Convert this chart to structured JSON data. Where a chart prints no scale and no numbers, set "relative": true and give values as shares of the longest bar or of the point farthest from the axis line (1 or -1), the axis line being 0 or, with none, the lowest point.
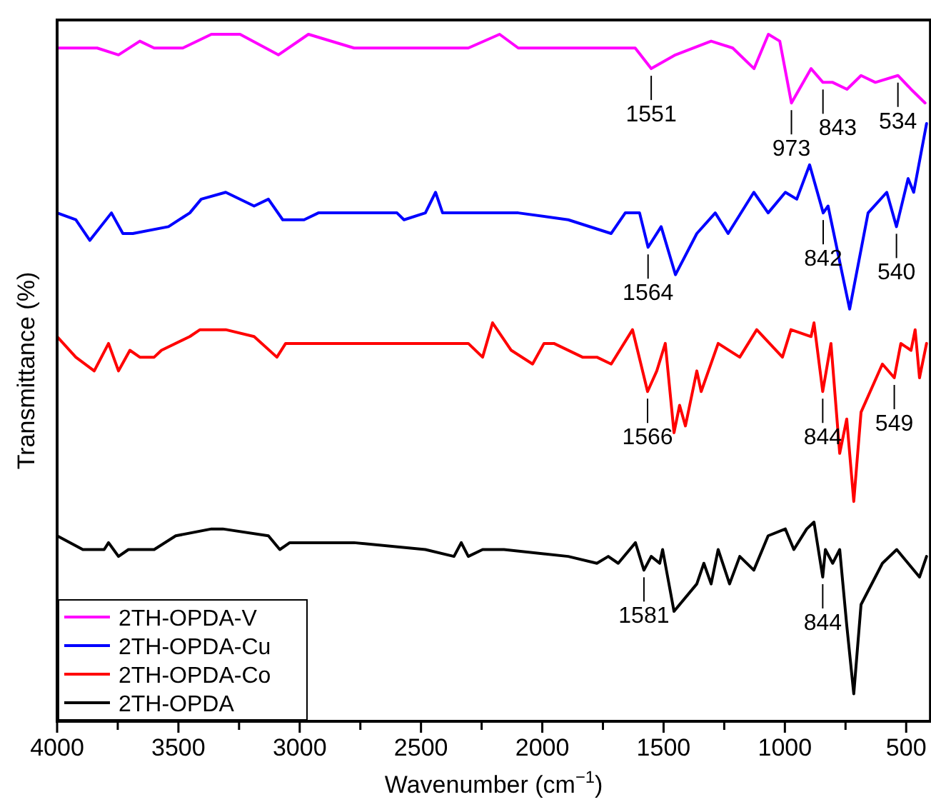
{
  "chart_data": {
    "type": "line",
    "relative": true,
    "xlabel": "Wavenumber (cm$^{−1}$)",
    "ylabel": "Transmittance (%)",
    "xlim": [
      4000,
      400
    ],
    "xticks": [
      4000,
      {
        "value": 3750,
        "label": null
      },
      3500,
      {
        "value": 3250,
        "label": null
      },
      3000,
      {
        "value": 2750,
        "label": null
      },
      2500,
      {
        "value": 2250,
        "label": null
      },
      2000,
      {
        "value": 1750,
        "label": null
      },
      1500,
      {
        "value": 1250,
        "label": null
      },
      1000,
      {
        "value": 750,
        "label": null
      },
      500
    ],
    "legend": "bottom left",
    "tick_labels": "x",
    "grid": false,
    "line_style": "solid",
    "marker": "none",
    "series": [
      {
        "name": "2TH-OPDA-V",
        "color": "#ff00ff",
        "x": [
          4000,
          3835,
          3747,
          3659,
          3600,
          3482,
          3364,
          3246,
          3088,
          2964,
          2776,
          2629,
          2482,
          2305,
          2176,
          2099,
          1893,
          1617,
          1551,
          1451,
          1304,
          1215,
          1127,
          1068,
          1021,
          973,
          892,
          843,
          803,
          744,
          686,
          627,
          534,
          480,
          422
        ],
        "values": [
          0.98,
          0.98,
          0.97,
          0.99,
          0.98,
          0.98,
          1.0,
          1.0,
          0.97,
          1.0,
          0.98,
          0.98,
          0.98,
          0.98,
          1.0,
          0.98,
          0.98,
          0.98,
          0.95,
          0.97,
          0.99,
          0.98,
          0.95,
          1.0,
          0.99,
          0.9,
          0.95,
          0.93,
          0.93,
          0.92,
          0.94,
          0.93,
          0.94,
          0.92,
          0.9
        ]
      },
      {
        "name": "2TH-OPDA-Cu",
        "color": "#0000ff",
        "x": [
          4000,
          3923,
          3865,
          3776,
          3729,
          3688,
          3541,
          3453,
          3406,
          3305,
          3188,
          3129,
          3070,
          2982,
          2923,
          2776,
          2599,
          2570,
          2482,
          2440,
          2411,
          2217,
          2099,
          1893,
          1716,
          1658,
          1599,
          1564,
          1510,
          1451,
          1363,
          1287,
          1234,
          1128,
          1069,
          998,
          951,
          898,
          842,
          822,
          733,
          657,
          580,
          540,
          492,
          469,
          416
        ],
        "values": [
          0.74,
          0.73,
          0.7,
          0.74,
          0.71,
          0.71,
          0.72,
          0.74,
          0.76,
          0.77,
          0.75,
          0.76,
          0.73,
          0.73,
          0.74,
          0.74,
          0.74,
          0.73,
          0.74,
          0.77,
          0.74,
          0.74,
          0.74,
          0.73,
          0.71,
          0.74,
          0.74,
          0.69,
          0.72,
          0.65,
          0.71,
          0.74,
          0.71,
          0.77,
          0.74,
          0.77,
          0.76,
          0.81,
          0.74,
          0.75,
          0.6,
          0.74,
          0.77,
          0.72,
          0.79,
          0.77,
          0.87
        ]
      },
      {
        "name": "2TH-OPDA-Co",
        "color": "#ff0000",
        "x": [
          4000,
          3923,
          3847,
          3788,
          3747,
          3700,
          3659,
          3600,
          3570,
          3453,
          3411,
          3305,
          3188,
          3094,
          3058,
          2893,
          2717,
          2599,
          2482,
          2305,
          2246,
          2205,
          2128,
          2040,
          1993,
          1952,
          1834,
          1775,
          1716,
          1628,
          1566,
          1528,
          1493,
          1457,
          1434,
          1410,
          1363,
          1345,
          1275,
          1186,
          1116,
          1010,
          975,
          892,
          880,
          844,
          810,
          774,
          745,
          716,
          686,
          598,
          549,
          522,
          480,
          463,
          445,
          416
        ],
        "values": [
          0.56,
          0.53,
          0.51,
          0.55,
          0.51,
          0.54,
          0.53,
          0.53,
          0.54,
          0.56,
          0.57,
          0.57,
          0.56,
          0.53,
          0.55,
          0.55,
          0.55,
          0.55,
          0.55,
          0.55,
          0.53,
          0.58,
          0.54,
          0.52,
          0.55,
          0.55,
          0.53,
          0.53,
          0.52,
          0.57,
          0.48,
          0.51,
          0.55,
          0.42,
          0.46,
          0.43,
          0.51,
          0.48,
          0.55,
          0.53,
          0.57,
          0.53,
          0.57,
          0.56,
          0.58,
          0.48,
          0.55,
          0.39,
          0.44,
          0.32,
          0.45,
          0.52,
          0.5,
          0.55,
          0.54,
          0.57,
          0.5,
          0.55
        ]
      },
      {
        "name": "2TH-OPDA",
        "color": "#000000",
        "x": [
          4000,
          3894,
          3806,
          3788,
          3747,
          3706,
          3600,
          3511,
          3364,
          3317,
          3129,
          3082,
          3041,
          2776,
          2482,
          2364,
          2334,
          2305,
          2246,
          2158,
          1893,
          1775,
          1728,
          1687,
          1616,
          1581,
          1551,
          1516,
          1504,
          1457,
          1363,
          1334,
          1304,
          1275,
          1228,
          1186,
          1128,
          1069,
          998,
          963,
          910,
          880,
          844,
          833,
          803,
          774,
          745,
          716,
          686,
          598,
          539,
          492,
          445,
          416
        ],
        "values": [
          0.27,
          0.25,
          0.25,
          0.26,
          0.24,
          0.25,
          0.25,
          0.27,
          0.28,
          0.28,
          0.27,
          0.25,
          0.26,
          0.26,
          0.25,
          0.24,
          0.26,
          0.24,
          0.25,
          0.25,
          0.24,
          0.23,
          0.24,
          0.23,
          0.26,
          0.22,
          0.24,
          0.23,
          0.25,
          0.16,
          0.2,
          0.23,
          0.2,
          0.25,
          0.2,
          0.24,
          0.22,
          0.27,
          0.28,
          0.25,
          0.28,
          0.29,
          0.21,
          0.25,
          0.23,
          0.25,
          0.14,
          0.04,
          0.17,
          0.23,
          0.25,
          0.23,
          0.21,
          0.24
        ]
      }
    ],
    "annotations": [
      {
        "text": "1551",
        "x": 1551,
        "y": 0.95
      },
      {
        "text": "973",
        "x": 973,
        "y": 0.9
      },
      {
        "text": "843",
        "x": 843,
        "y": 0.93
      },
      {
        "text": "534",
        "x": 534,
        "y": 0.94
      },
      {
        "text": "1564",
        "x": 1564,
        "y": 0.69
      },
      {
        "text": "842",
        "x": 842,
        "y": 0.74
      },
      {
        "text": "540",
        "x": 540,
        "y": 0.72
      },
      {
        "text": "1566",
        "x": 1566,
        "y": 0.48
      },
      {
        "text": "844",
        "x": 844,
        "y": 0.48
      },
      {
        "text": "549",
        "x": 549,
        "y": 0.5
      },
      {
        "text": "1581",
        "x": 1581,
        "y": 0.22
      },
      {
        "text": "844",
        "x": 844,
        "y": 0.21
      }
    ]
  }
}
